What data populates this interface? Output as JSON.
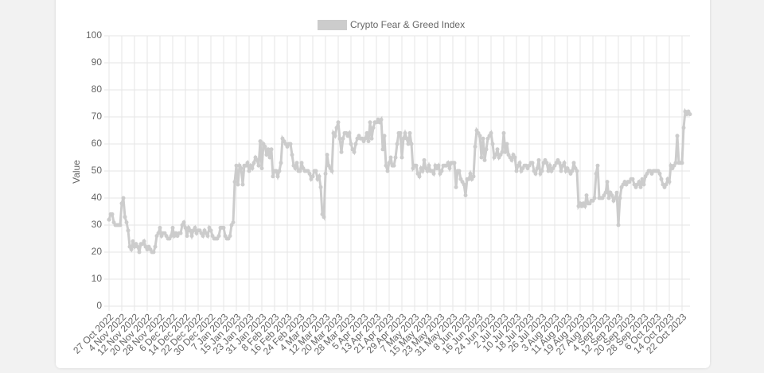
{
  "chart_data": {
    "type": "line",
    "ylabel": "Value",
    "ylim": [
      0,
      100
    ],
    "yticks": [
      0,
      10,
      20,
      30,
      40,
      50,
      60,
      70,
      80,
      90,
      100
    ],
    "grid": true,
    "legend": "top",
    "categories": [
      "27 Oct 2022",
      null,
      null,
      null,
      null,
      null,
      null,
      null,
      "4 Nov 2022",
      null,
      null,
      null,
      null,
      null,
      null,
      null,
      "12 Nov 2022",
      null,
      null,
      null,
      null,
      null,
      null,
      null,
      "20 Nov 2022",
      null,
      null,
      null,
      null,
      null,
      null,
      null,
      "28 Nov 2022",
      null,
      null,
      null,
      null,
      null,
      null,
      null,
      "6 Dec 2022",
      null,
      null,
      null,
      null,
      null,
      null,
      null,
      "14 Dec 2022",
      null,
      null,
      null,
      null,
      null,
      null,
      null,
      "22 Dec 2022",
      null,
      null,
      null,
      null,
      null,
      null,
      null,
      "30 Dec 2022",
      null,
      null,
      null,
      null,
      null,
      null,
      null,
      "7 Jan 2023",
      null,
      null,
      null,
      null,
      null,
      null,
      null,
      "15 Jan 2023",
      null,
      null,
      null,
      null,
      null,
      null,
      null,
      "23 Jan 2023",
      null,
      null,
      null,
      null,
      null,
      null,
      null,
      "31 Jan 2023",
      null,
      null,
      null,
      null,
      null,
      null,
      null,
      "8 Feb 2023",
      null,
      null,
      null,
      null,
      null,
      null,
      null,
      "16 Feb 2023",
      null,
      null,
      null,
      null,
      null,
      null,
      null,
      "24 Feb 2023",
      null,
      null,
      null,
      null,
      null,
      null,
      null,
      "4 Mar 2023",
      null,
      null,
      null,
      null,
      null,
      null,
      null,
      "12 Mar 2023",
      null,
      null,
      null,
      null,
      null,
      null,
      null,
      "20 Mar 2023",
      null,
      null,
      null,
      null,
      null,
      null,
      null,
      "28 Mar 2023",
      null,
      null,
      null,
      null,
      null,
      null,
      null,
      "5 Apr 2023",
      null,
      null,
      null,
      null,
      null,
      null,
      null,
      "13 Apr 2023",
      null,
      null,
      null,
      null,
      null,
      null,
      null,
      "21 Apr 2023",
      null,
      null,
      null,
      null,
      null,
      null,
      null,
      "29 Apr 2023",
      null,
      null,
      null,
      null,
      null,
      null,
      null,
      "7 May 2023",
      null,
      null,
      null,
      null,
      null,
      null,
      null,
      "15 May 2023",
      null,
      null,
      null,
      null,
      null,
      null,
      null,
      "23 May 2023",
      null,
      null,
      null,
      null,
      null,
      null,
      null,
      "31 May 2023",
      null,
      null,
      null,
      null,
      null,
      null,
      null,
      "8 Jun 2023",
      null,
      null,
      null,
      null,
      null,
      null,
      null,
      "16 Jun 2023",
      null,
      null,
      null,
      null,
      null,
      null,
      null,
      "24 Jun 2023",
      null,
      null,
      null,
      null,
      null,
      null,
      null,
      "2 Jul 2023",
      null,
      null,
      null,
      null,
      null,
      null,
      null,
      "10 Jul 2023",
      null,
      null,
      null,
      null,
      null,
      null,
      null,
      "18 Jul 2023",
      null,
      null,
      null,
      null,
      null,
      null,
      null,
      "26 Jul 2023",
      null,
      null,
      null,
      null,
      null,
      null,
      null,
      "3 Aug 2023",
      null,
      null,
      null,
      null,
      null,
      null,
      null,
      "11 Aug 2023",
      null,
      null,
      null,
      null,
      null,
      null,
      null,
      "19 Aug 2023",
      null,
      null,
      null,
      null,
      null,
      null,
      null,
      "27 Aug 2023",
      null,
      null,
      null,
      null,
      null,
      null,
      null,
      "4 Sep 2023",
      null,
      null,
      null,
      null,
      null,
      null,
      null,
      "12 Sep 2023",
      null,
      null,
      null,
      null,
      null,
      null,
      null,
      "20 Sep 2023",
      null,
      null,
      null,
      null,
      null,
      null,
      null,
      "28 Sep 2023",
      null,
      null,
      null,
      null,
      null,
      null,
      null,
      "6 Oct 2023",
      null,
      null,
      null,
      null,
      null,
      null,
      null,
      "14 Oct 2023",
      null,
      null,
      null,
      null,
      null,
      null,
      null,
      "22 Oct 2023",
      null,
      null,
      null,
      null,
      null
    ],
    "series": [
      {
        "name": "Crypto Fear & Greed Index",
        "color": "#cccccc",
        "values": [
          32,
          34,
          34,
          31,
          30,
          30,
          30,
          30,
          38,
          40,
          33,
          31,
          28,
          22,
          21,
          24,
          22,
          23,
          22,
          20,
          23,
          23,
          24,
          22,
          21,
          22,
          21,
          20,
          20,
          22,
          26,
          27,
          29,
          26,
          27,
          27,
          26,
          25,
          25,
          26,
          29,
          26,
          27,
          26,
          27,
          27,
          30,
          31,
          29,
          26,
          29,
          28,
          26,
          28,
          29,
          27,
          28,
          28,
          27,
          26,
          28,
          27,
          26,
          29,
          28,
          26,
          25,
          25,
          25,
          26,
          29,
          29,
          29,
          26,
          25,
          25,
          26,
          30,
          31,
          46,
          52,
          45,
          52,
          51,
          45,
          52,
          52,
          53,
          50,
          52,
          51,
          53,
          55,
          54,
          52,
          61,
          51,
          60,
          59,
          56,
          58,
          55,
          58,
          48,
          50,
          50,
          48,
          50,
          53,
          62,
          61,
          60,
          59,
          60,
          60,
          56,
          52,
          51,
          53,
          50,
          50,
          53,
          51,
          50,
          50,
          50,
          49,
          47,
          48,
          50,
          50,
          47,
          48,
          44,
          34,
          33,
          49,
          56,
          52,
          51,
          50,
          64,
          63,
          66,
          68,
          62,
          57,
          62,
          64,
          64,
          63,
          64,
          60,
          58,
          57,
          60,
          62,
          63,
          62,
          62,
          61,
          62,
          64,
          61,
          68,
          62,
          66,
          68,
          68,
          69,
          68,
          69,
          58,
          63,
          52,
          50,
          53,
          55,
          52,
          52,
          55,
          60,
          64,
          64,
          55,
          62,
          64,
          62,
          60,
          64,
          60,
          51,
          52,
          52,
          49,
          48,
          51,
          50,
          54,
          51,
          50,
          52,
          50,
          50,
          49,
          52,
          51,
          52,
          49,
          50,
          52,
          52,
          52,
          53,
          51,
          53,
          53,
          53,
          44,
          50,
          50,
          47,
          46,
          45,
          41,
          47,
          47,
          49,
          47,
          48,
          59,
          65,
          64,
          63,
          55,
          62,
          54,
          58,
          62,
          63,
          64,
          60,
          55,
          56,
          58,
          55,
          56,
          57,
          64,
          57,
          60,
          56,
          55,
          54,
          56,
          55,
          50,
          52,
          53,
          50,
          51,
          52,
          52,
          51,
          52,
          53,
          53,
          50,
          49,
          51,
          54,
          49,
          50,
          53,
          54,
          53,
          50,
          52,
          50,
          51,
          52,
          53,
          54,
          53,
          50,
          52,
          53,
          50,
          51,
          50,
          49,
          50,
          53,
          51,
          50,
          37,
          38,
          37,
          38,
          37,
          41,
          38,
          38,
          39,
          39,
          40,
          49,
          52,
          40,
          40,
          40,
          41,
          42,
          46,
          40,
          42,
          41,
          39,
          40,
          42,
          30,
          40,
          44,
          45,
          46,
          45,
          46,
          46,
          47,
          47,
          45,
          44,
          45,
          46,
          44,
          47,
          45,
          48,
          49,
          50,
          50,
          49,
          50,
          50,
          50,
          50,
          49,
          47,
          45,
          44,
          45,
          47,
          46,
          52,
          51,
          52,
          53,
          63,
          53,
          53,
          53,
          66,
          72,
          71,
          72,
          71
        ]
      }
    ]
  }
}
